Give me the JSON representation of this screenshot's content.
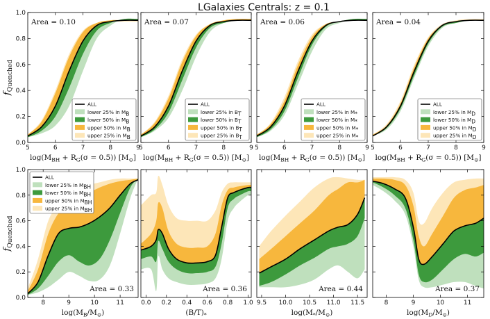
{
  "title": "LGalaxies Centrals: z = 0.1",
  "ylabel": "f_Quenched",
  "colors": {
    "all": "#000000",
    "lower25": "#bfe0bd",
    "lower50": "#3d9a3d",
    "upper50": "#f7b73d",
    "upper25": "#fde6b8"
  },
  "legend_base": [
    "ALL",
    "lower 25%  in",
    "lower 50%  in",
    "upper 50%  in",
    "upper 25%  in"
  ],
  "chart_data": [
    {
      "type": "area",
      "xlabel": "log(M_BH + R_G(σ = 0.5)) [M_⊙]",
      "legend_var": "M_B",
      "area_text": "Area = 0.10",
      "xlim": [
        5,
        9
      ],
      "ylim": [
        0,
        1
      ],
      "xticks": [
        "5",
        "6",
        "7",
        "8",
        "9"
      ],
      "yticks": [
        "0.0",
        "0.2",
        "0.4",
        "0.6",
        "0.8",
        "1.0"
      ],
      "x": [
        5.0,
        5.5,
        6.0,
        6.5,
        7.0,
        7.5,
        8.0,
        8.5,
        9.0
      ],
      "all": [
        0.05,
        0.12,
        0.28,
        0.55,
        0.78,
        0.9,
        0.93,
        0.94,
        0.94
      ],
      "lower25": [
        0.04,
        0.07,
        0.13,
        0.28,
        0.55,
        0.8,
        0.9,
        0.95,
        0.95
      ],
      "lower50": [
        0.04,
        0.09,
        0.2,
        0.42,
        0.68,
        0.86,
        0.92,
        0.95,
        0.95
      ],
      "upper50": [
        0.06,
        0.16,
        0.38,
        0.66,
        0.85,
        0.92,
        0.94,
        0.94,
        0.94
      ],
      "upper25": [
        0.06,
        0.17,
        0.4,
        0.68,
        0.86,
        0.92,
        0.93,
        0.93,
        0.93
      ]
    },
    {
      "type": "area",
      "xlabel": "log(M_BH + R_G(σ = 0.5)) [M_⊙]",
      "legend_var": "B/T",
      "area_text": "Area = 0.07",
      "xlim": [
        5,
        9
      ],
      "ylim": [
        0,
        1
      ],
      "xticks": [
        "5",
        "6",
        "7",
        "8",
        "9"
      ],
      "yticks": [
        "0.0",
        "0.2",
        "0.4",
        "0.6",
        "0.8",
        "1.0"
      ],
      "x": [
        5.0,
        5.5,
        6.0,
        6.5,
        7.0,
        7.5,
        8.0,
        8.5,
        9.0
      ],
      "all": [
        0.05,
        0.12,
        0.28,
        0.55,
        0.78,
        0.9,
        0.93,
        0.94,
        0.94
      ],
      "lower25": [
        0.04,
        0.09,
        0.19,
        0.4,
        0.66,
        0.85,
        0.92,
        0.94,
        0.94
      ],
      "lower50": [
        0.04,
        0.1,
        0.23,
        0.48,
        0.73,
        0.88,
        0.92,
        0.94,
        0.94
      ],
      "upper50": [
        0.06,
        0.15,
        0.34,
        0.62,
        0.82,
        0.91,
        0.94,
        0.95,
        0.95
      ],
      "upper25": [
        0.06,
        0.16,
        0.36,
        0.64,
        0.83,
        0.91,
        0.94,
        0.95,
        0.95
      ]
    },
    {
      "type": "area",
      "xlabel": "log(M_BH + R_G(σ = 0.5)) [M_⊙]",
      "legend_var": "M_*",
      "area_text": "Area = 0.06",
      "xlim": [
        5,
        9
      ],
      "ylim": [
        0,
        1
      ],
      "xticks": [
        "5",
        "6",
        "7",
        "8",
        "9"
      ],
      "yticks": [
        "0.0",
        "0.2",
        "0.4",
        "0.6",
        "0.8",
        "1.0"
      ],
      "x": [
        5.0,
        5.5,
        6.0,
        6.5,
        7.0,
        7.5,
        8.0,
        8.5,
        9.0
      ],
      "all": [
        0.05,
        0.12,
        0.28,
        0.55,
        0.78,
        0.9,
        0.93,
        0.94,
        0.94
      ],
      "lower25": [
        0.04,
        0.09,
        0.21,
        0.45,
        0.7,
        0.87,
        0.92,
        0.95,
        0.95
      ],
      "lower50": [
        0.04,
        0.1,
        0.24,
        0.5,
        0.75,
        0.89,
        0.93,
        0.95,
        0.95
      ],
      "upper50": [
        0.06,
        0.14,
        0.32,
        0.6,
        0.81,
        0.91,
        0.93,
        0.94,
        0.94
      ],
      "upper25": [
        0.06,
        0.15,
        0.35,
        0.63,
        0.83,
        0.91,
        0.93,
        0.94,
        0.94
      ]
    },
    {
      "type": "area",
      "xlabel": "log(M_BH + R_G(σ = 0.5)) [M_⊙]",
      "legend_var": "M_D",
      "area_text": "Area = 0.04",
      "xlim": [
        5,
        9
      ],
      "ylim": [
        0,
        1
      ],
      "xticks": [
        "5",
        "6",
        "7",
        "8",
        "9"
      ],
      "yticks": [
        "0.0",
        "0.2",
        "0.4",
        "0.6",
        "0.8",
        "1.0"
      ],
      "x": [
        5.0,
        5.5,
        6.0,
        6.5,
        7.0,
        7.5,
        8.0,
        8.5,
        9.0
      ],
      "all": [
        0.05,
        0.12,
        0.28,
        0.55,
        0.78,
        0.9,
        0.93,
        0.94,
        0.94
      ],
      "lower25": [
        0.05,
        0.1,
        0.24,
        0.5,
        0.74,
        0.88,
        0.92,
        0.94,
        0.94
      ],
      "lower50": [
        0.05,
        0.11,
        0.26,
        0.52,
        0.76,
        0.89,
        0.92,
        0.94,
        0.94
      ],
      "upper50": [
        0.06,
        0.13,
        0.3,
        0.58,
        0.8,
        0.9,
        0.93,
        0.94,
        0.94
      ],
      "upper25": [
        0.06,
        0.14,
        0.32,
        0.6,
        0.81,
        0.91,
        0.94,
        0.95,
        0.95
      ]
    },
    {
      "type": "area",
      "xlabel": "log(M_B/M_⊙)",
      "legend_var": "M_BH",
      "area_text": "Area = 0.33",
      "xlim": [
        7.4,
        11.7
      ],
      "ylim": [
        0,
        1
      ],
      "xticks": [
        "8",
        "9",
        "10",
        "11"
      ],
      "xtick_values": [
        8,
        9,
        10,
        11
      ],
      "yticks": [
        "0.0",
        "0.2",
        "0.4",
        "0.6",
        "0.8",
        "1.0"
      ],
      "x": [
        7.4,
        7.8,
        8.2,
        8.6,
        9.0,
        9.4,
        9.8,
        10.2,
        10.6,
        11.0,
        11.4,
        11.7
      ],
      "all": [
        0.03,
        0.12,
        0.33,
        0.5,
        0.54,
        0.55,
        0.58,
        0.63,
        0.7,
        0.8,
        0.89,
        0.92
      ],
      "lower25": [
        0.02,
        0.04,
        0.08,
        0.14,
        0.2,
        0.17,
        0.13,
        0.14,
        0.25,
        0.5,
        0.78,
        0.93
      ],
      "lower50": [
        0.02,
        0.07,
        0.17,
        0.28,
        0.33,
        0.28,
        0.25,
        0.3,
        0.45,
        0.66,
        0.86,
        0.93
      ],
      "upper50": [
        0.05,
        0.22,
        0.5,
        0.66,
        0.74,
        0.78,
        0.82,
        0.86,
        0.89,
        0.91,
        0.92,
        0.93
      ],
      "upper25": [
        0.07,
        0.3,
        0.6,
        0.72,
        0.8,
        0.84,
        0.88,
        0.9,
        0.92,
        0.93,
        0.93,
        0.93
      ]
    },
    {
      "type": "area",
      "xlabel": "(B/T)_*",
      "legend_var": "",
      "area_text": "Area = 0.36",
      "xlim": [
        -0.05,
        1.03
      ],
      "ylim": [
        0,
        1
      ],
      "xticks": [
        "0.0",
        "0.2",
        "0.4",
        "0.6",
        "0.8",
        "1.0"
      ],
      "xtick_values": [
        0,
        0.2,
        0.4,
        0.6,
        0.8,
        1.0
      ],
      "yticks": [
        "0.0",
        "0.2",
        "0.4",
        "0.6",
        "0.8",
        "1.0"
      ],
      "x": [
        -0.05,
        0.05,
        0.1,
        0.12,
        0.16,
        0.22,
        0.3,
        0.4,
        0.5,
        0.6,
        0.68,
        0.74,
        0.8,
        0.86,
        0.92,
        1.0,
        1.03
      ],
      "all": [
        0.37,
        0.4,
        0.45,
        0.53,
        0.5,
        0.38,
        0.3,
        0.27,
        0.27,
        0.28,
        0.33,
        0.55,
        0.78,
        0.82,
        0.84,
        0.86,
        0.86
      ],
      "lower25": [
        0.22,
        0.22,
        0.05,
        0.32,
        0.22,
        0.15,
        0.12,
        0.1,
        0.1,
        0.11,
        0.15,
        0.3,
        0.6,
        0.7,
        0.75,
        0.8,
        0.8
      ],
      "lower50": [
        0.3,
        0.32,
        0.28,
        0.44,
        0.38,
        0.28,
        0.22,
        0.19,
        0.19,
        0.2,
        0.24,
        0.42,
        0.7,
        0.77,
        0.8,
        0.83,
        0.83
      ],
      "upper50": [
        0.42,
        0.5,
        0.6,
        0.74,
        0.7,
        0.52,
        0.42,
        0.39,
        0.39,
        0.4,
        0.5,
        0.72,
        0.84,
        0.86,
        0.87,
        0.88,
        0.88
      ],
      "upper25": [
        0.72,
        0.8,
        0.82,
        0.95,
        0.88,
        0.72,
        0.62,
        0.6,
        0.6,
        0.6,
        0.68,
        0.82,
        0.89,
        0.9,
        0.9,
        0.9,
        0.9
      ]
    },
    {
      "type": "area",
      "xlabel": "log(M_*/M_⊙)",
      "legend_var": "",
      "area_text": "Area = 0.44",
      "xlim": [
        9.4,
        11.7
      ],
      "ylim": [
        0,
        1
      ],
      "xticks": [
        "9.5",
        "10.0",
        "10.5",
        "11.0",
        "11.5"
      ],
      "xtick_values": [
        9.5,
        10.0,
        10.5,
        11.0,
        11.5
      ],
      "yticks": [
        "0.0",
        "0.2",
        "0.4",
        "0.6",
        "0.8",
        "1.0"
      ],
      "x": [
        9.45,
        9.7,
        10.0,
        10.3,
        10.6,
        10.9,
        11.1,
        11.3,
        11.5,
        11.65
      ],
      "all": [
        0.19,
        0.24,
        0.3,
        0.38,
        0.45,
        0.52,
        0.55,
        0.57,
        0.65,
        0.78
      ],
      "lower25": [
        0.08,
        0.08,
        0.08,
        0.1,
        0.14,
        0.22,
        0.25,
        0.2,
        0.15,
        0.22
      ],
      "lower50": [
        0.09,
        0.12,
        0.18,
        0.25,
        0.31,
        0.38,
        0.4,
        0.42,
        0.48,
        0.62
      ],
      "upper50": [
        0.3,
        0.38,
        0.48,
        0.58,
        0.68,
        0.8,
        0.85,
        0.9,
        0.9,
        0.92
      ],
      "upper25": [
        0.4,
        0.52,
        0.64,
        0.75,
        0.86,
        0.93,
        0.94,
        0.93,
        0.92,
        0.92
      ]
    },
    {
      "type": "area",
      "xlabel": "log(M_D/M_⊙)",
      "legend_var": "",
      "area_text": "Area = 0.37",
      "xlim": [
        7.5,
        11.6
      ],
      "ylim": [
        0,
        1
      ],
      "xticks": [
        "8",
        "9",
        "10",
        "11"
      ],
      "xtick_values": [
        8,
        9,
        10,
        11
      ],
      "yticks": [
        "0.0",
        "0.2",
        "0.4",
        "0.6",
        "0.8",
        "1.0"
      ],
      "x": [
        7.5,
        7.9,
        8.3,
        8.7,
        9.0,
        9.2,
        9.4,
        9.7,
        10.1,
        10.5,
        10.9,
        11.3,
        11.6
      ],
      "all": [
        0.91,
        0.89,
        0.85,
        0.78,
        0.55,
        0.3,
        0.26,
        0.32,
        0.42,
        0.52,
        0.56,
        0.58,
        0.62
      ],
      "lower25": [
        0.88,
        0.83,
        0.76,
        0.65,
        0.4,
        0.14,
        0.08,
        0.08,
        0.1,
        0.12,
        0.12,
        0.09,
        0.07
      ],
      "lower50": [
        0.9,
        0.86,
        0.8,
        0.7,
        0.45,
        0.18,
        0.12,
        0.14,
        0.22,
        0.3,
        0.34,
        0.32,
        0.35
      ],
      "upper50": [
        0.93,
        0.93,
        0.92,
        0.88,
        0.72,
        0.48,
        0.4,
        0.5,
        0.64,
        0.78,
        0.84,
        0.86,
        0.88
      ],
      "upper25": [
        0.94,
        0.94,
        0.94,
        0.92,
        0.82,
        0.6,
        0.58,
        0.7,
        0.82,
        0.9,
        0.92,
        0.93,
        0.93
      ]
    }
  ]
}
